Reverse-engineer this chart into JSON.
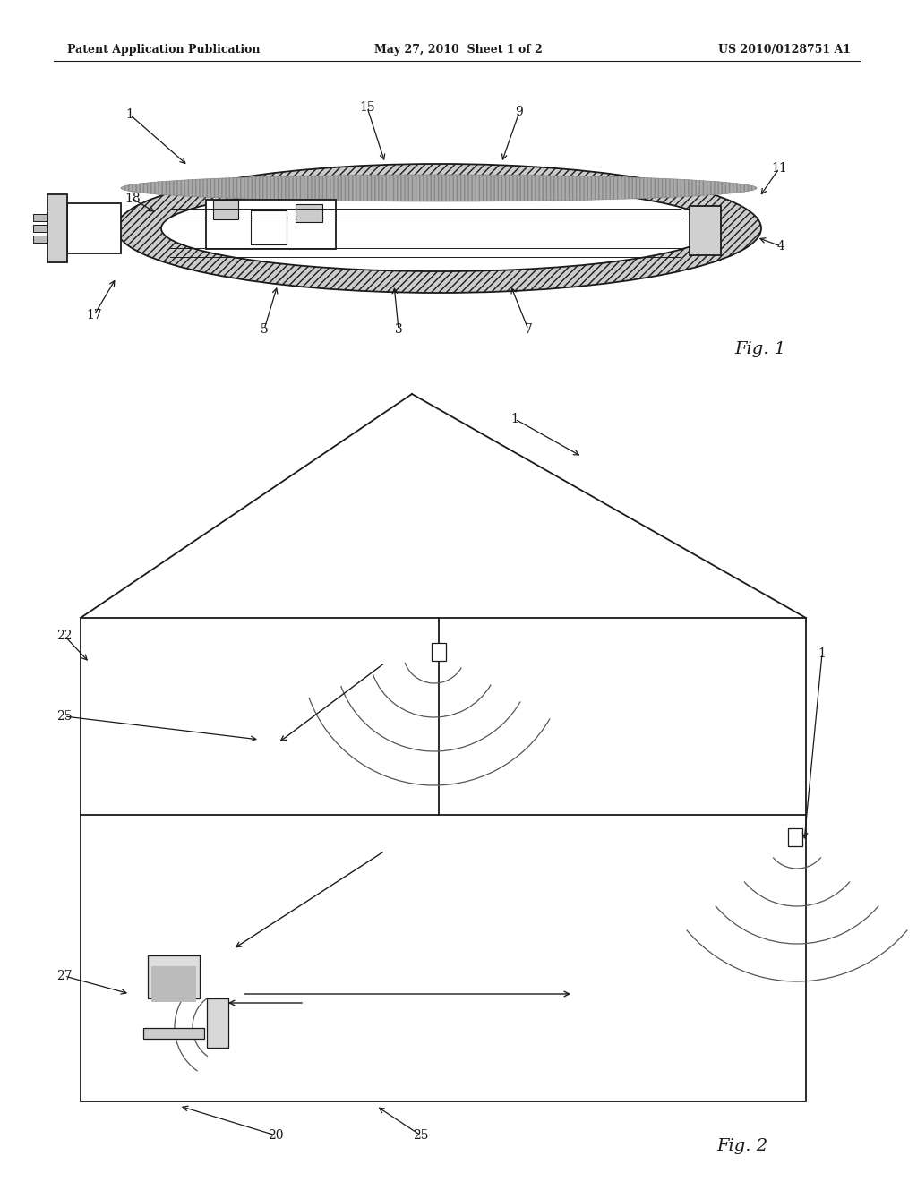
{
  "bg_color": "#ffffff",
  "line_color": "#1a1a1a",
  "header": {
    "left": "Patent Application Publication",
    "center": "May 27, 2010  Sheet 1 of 2",
    "right": "US 2010/0128751 A1"
  },
  "fig1_label": "Fig. 1",
  "fig2_label": "Fig. 2"
}
